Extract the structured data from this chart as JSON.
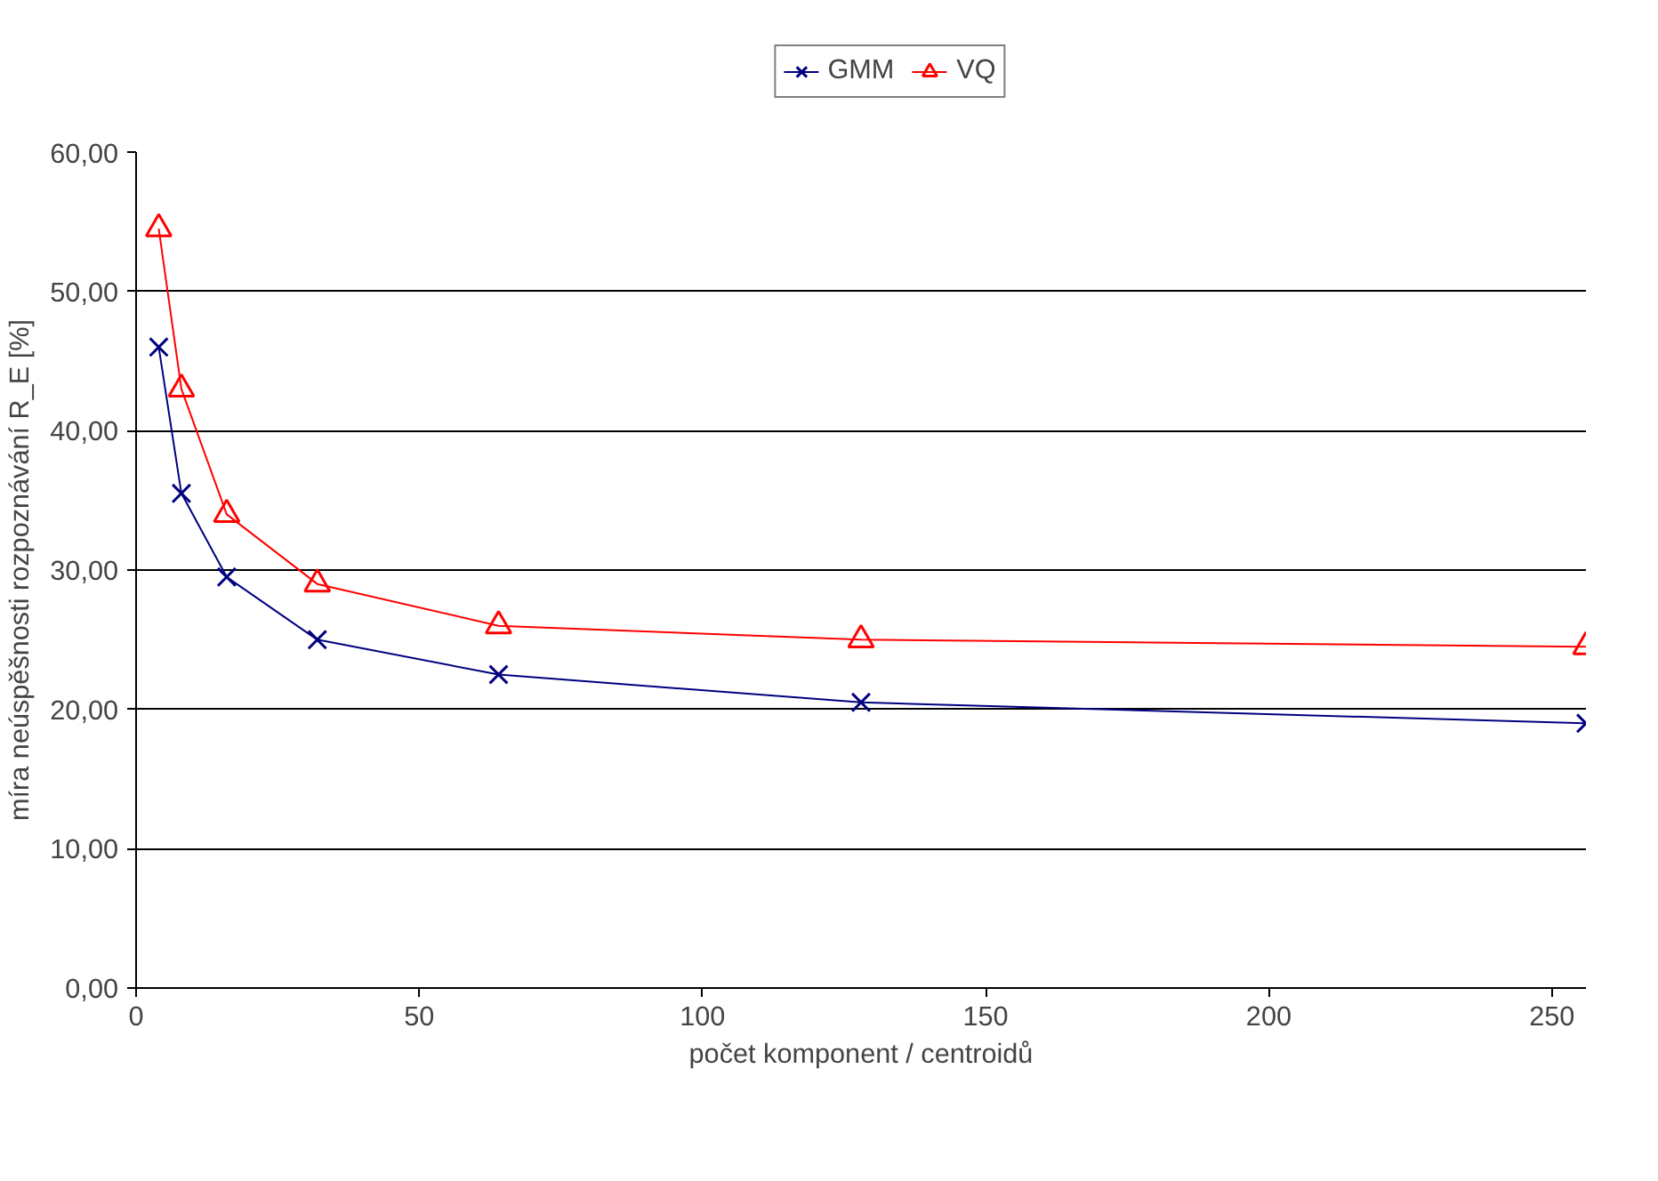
{
  "chart_data": {
    "type": "line",
    "xlabel": "počet komponent / centroidů",
    "ylabel": "míra neúspěšnosti rozpoznávání R_E [%]",
    "x": [
      4,
      8,
      16,
      32,
      64,
      128,
      256
    ],
    "series": [
      {
        "name": "GMM",
        "color": "#000080",
        "marker": "cross",
        "values": [
          46,
          35.5,
          29.5,
          25,
          22.5,
          20.5,
          19
        ]
      },
      {
        "name": "VQ",
        "color": "#ff0000",
        "marker": "triangle",
        "values": [
          54.5,
          43,
          34,
          29,
          26,
          25,
          24.5
        ]
      }
    ],
    "xlim": [
      0,
      256
    ],
    "xticks": [
      0,
      50,
      100,
      150,
      200,
      250
    ],
    "ylim": [
      0,
      60
    ],
    "yticks": [
      {
        "value": 0,
        "label": "0,00"
      },
      {
        "value": 10,
        "label": "10,00"
      },
      {
        "value": 20,
        "label": "20,00"
      },
      {
        "value": 30,
        "label": "30,00"
      },
      {
        "value": 40,
        "label": "40,00"
      },
      {
        "value": 50,
        "label": "50,00"
      },
      {
        "value": 60,
        "label": "60,00"
      }
    ],
    "grid": "y",
    "legend": "top",
    "line_style": "solid"
  }
}
